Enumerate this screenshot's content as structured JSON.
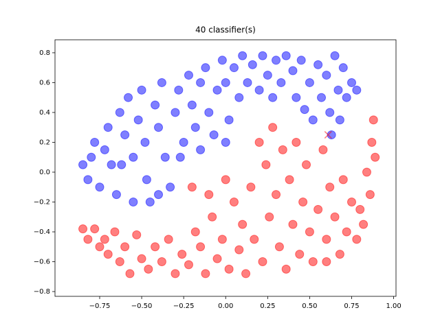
{
  "chart_data": {
    "type": "scatter",
    "title": "40 classifier(s)",
    "xlim": [
      -1.016,
      1.014
    ],
    "ylim": [
      -0.832,
      0.887
    ],
    "xticks": [
      {
        "value": -0.75,
        "label": "−0.75"
      },
      {
        "value": -0.5,
        "label": "−0.50"
      },
      {
        "value": -0.25,
        "label": "−0.25"
      },
      {
        "value": 0,
        "label": "0.00"
      },
      0.25,
      {
        "value": 0.5,
        "label": "0.50"
      },
      0.75,
      {
        "value": 1,
        "label": "1.00"
      }
    ],
    "yticks": [
      {
        "value": -0.8,
        "label": "−0.8"
      },
      {
        "value": -0.6,
        "label": "−0.6"
      },
      {
        "value": -0.4,
        "label": "−0.4"
      },
      {
        "value": -0.2,
        "label": "−0.2"
      },
      {
        "value": 0,
        "label": "0.0"
      },
      0.2,
      0.4,
      0.6,
      0.8
    ],
    "series": [
      {
        "color": "#0000ff",
        "x": [
          -0.85,
          -0.82,
          -0.8,
          -0.78,
          -0.75,
          -0.72,
          -0.7,
          -0.68,
          -0.65,
          -0.63,
          -0.6,
          -0.58,
          -0.55,
          -0.55,
          -0.52,
          -0.5,
          -0.48,
          -0.47,
          -0.45,
          -0.42,
          -0.4,
          -0.38,
          -0.36,
          -0.33,
          -0.3,
          -0.28,
          -0.25,
          -0.22,
          -0.2,
          -0.18,
          -0.15,
          -0.12,
          -0.1,
          -0.07,
          -0.05,
          -0.02,
          0.0,
          0.02,
          0.05,
          0.08,
          0.1,
          0.13,
          0.16,
          0.2,
          0.22,
          0.25,
          0.28,
          0.3,
          0.33,
          0.36,
          0.4,
          0.42,
          0.45,
          0.47,
          0.5,
          0.52,
          0.55,
          0.57,
          0.6,
          0.62,
          0.63,
          0.65,
          0.67,
          0.68,
          0.7,
          0.72,
          0.75,
          0.78,
          -0.62,
          -0.4,
          -0.27,
          -0.15,
          0.0
        ],
        "y": [
          0.05,
          -0.05,
          0.1,
          0.2,
          -0.1,
          0.15,
          0.3,
          0.05,
          -0.15,
          0.4,
          0.25,
          0.5,
          0.1,
          -0.2,
          0.35,
          0.55,
          0.2,
          -0.05,
          -0.2,
          0.45,
          0.3,
          0.6,
          0.1,
          -0.1,
          0.4,
          0.55,
          0.2,
          0.65,
          0.45,
          0.3,
          0.6,
          0.7,
          0.4,
          0.25,
          0.55,
          0.75,
          0.6,
          0.35,
          0.7,
          0.5,
          0.78,
          0.6,
          0.72,
          0.55,
          0.78,
          0.65,
          0.5,
          0.75,
          0.6,
          0.78,
          0.68,
          0.5,
          0.75,
          0.42,
          0.6,
          0.35,
          0.72,
          0.5,
          0.65,
          0.4,
          0.25,
          0.78,
          0.55,
          0.35,
          0.7,
          0.5,
          0.6,
          0.55,
          0.05,
          -0.15,
          0.1,
          0.15,
          0.2
        ]
      },
      {
        "color": "#ff0000",
        "x": [
          -0.85,
          -0.82,
          -0.78,
          -0.75,
          -0.72,
          -0.7,
          -0.66,
          -0.63,
          -0.6,
          -0.57,
          -0.53,
          -0.5,
          -0.46,
          -0.42,
          -0.38,
          -0.34,
          -0.3,
          -0.26,
          -0.22,
          -0.18,
          -0.15,
          -0.12,
          -0.08,
          -0.05,
          -0.02,
          0.02,
          0.05,
          0.08,
          0.1,
          0.12,
          0.15,
          0.17,
          0.2,
          0.22,
          0.24,
          0.26,
          0.28,
          0.3,
          0.32,
          0.34,
          0.36,
          0.38,
          0.4,
          0.42,
          0.44,
          0.46,
          0.48,
          0.5,
          0.52,
          0.55,
          0.58,
          0.6,
          0.62,
          0.65,
          0.68,
          0.7,
          0.72,
          0.75,
          0.78,
          0.8,
          0.82,
          0.84,
          0.86,
          0.87,
          0.88,
          0.89,
          -0.2,
          -0.1,
          0.0,
          0.6
        ],
        "y": [
          -0.38,
          -0.45,
          -0.38,
          -0.5,
          -0.45,
          -0.55,
          -0.4,
          -0.6,
          -0.5,
          -0.68,
          -0.42,
          -0.58,
          -0.65,
          -0.5,
          -0.6,
          -0.45,
          -0.68,
          -0.55,
          -0.62,
          -0.4,
          -0.5,
          -0.68,
          -0.3,
          -0.58,
          -0.45,
          -0.65,
          -0.2,
          -0.52,
          -0.35,
          -0.68,
          -0.1,
          -0.45,
          0.2,
          -0.6,
          0.05,
          -0.3,
          0.3,
          -0.15,
          -0.5,
          0.15,
          -0.65,
          -0.05,
          -0.35,
          0.2,
          -0.55,
          -0.2,
          0.05,
          -0.4,
          -0.6,
          -0.25,
          0.15,
          -0.45,
          -0.1,
          -0.3,
          -0.55,
          -0.05,
          -0.4,
          -0.2,
          -0.45,
          -0.25,
          -0.35,
          0.0,
          -0.15,
          0.2,
          0.35,
          0.1,
          -0.1,
          -0.15,
          -0.05,
          -0.6
        ]
      }
    ],
    "cross": {
      "x": 0.61,
      "y": 0.25,
      "color": "#ff0000"
    }
  }
}
